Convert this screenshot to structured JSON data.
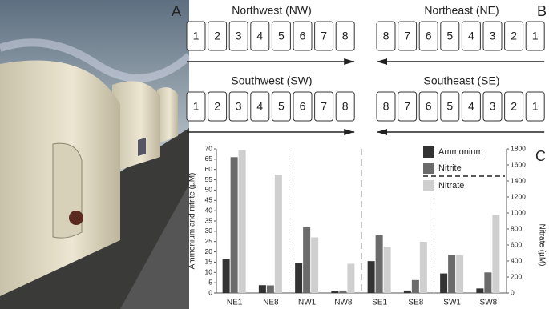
{
  "panel_labels": [
    "A",
    "B",
    "C"
  ],
  "diagram": {
    "groups": [
      {
        "title": "Northwest (NW)",
        "boxes": [
          1,
          2,
          3,
          4,
          5,
          6,
          7,
          8
        ],
        "direction": "right"
      },
      {
        "title": "Northeast (NE)",
        "boxes": [
          8,
          7,
          6,
          5,
          4,
          3,
          2,
          1
        ],
        "direction": "left"
      },
      {
        "title": "Southwest (SW)",
        "boxes": [
          1,
          2,
          3,
          4,
          5,
          6,
          7,
          8
        ],
        "direction": "right"
      },
      {
        "title": "Southeast (SE)",
        "boxes": [
          8,
          7,
          6,
          5,
          4,
          3,
          2,
          1
        ],
        "direction": "left"
      }
    ]
  },
  "chart_data": {
    "type": "bar",
    "y_label": "Ammonium and nitrite (µM)",
    "y2_label": "Nitrate (µM)",
    "categories": [
      "NE1",
      "NE8",
      "NW1",
      "NW8",
      "SE1",
      "SE8",
      "SW1",
      "SW8"
    ],
    "series": [
      {
        "name": "Ammonium",
        "color": "#333333",
        "values": [
          16.5,
          3.8,
          14.5,
          0.8,
          15.5,
          1.2,
          9.5,
          2.2
        ]
      },
      {
        "name": "Nitrite",
        "color": "#6b6b6b",
        "values": [
          66,
          3.7,
          32,
          1.2,
          28,
          6.3,
          18.5,
          10
        ]
      },
      {
        "name": "Nitrate",
        "color": "#cfcfcf",
        "axis": "y2",
        "values": [
          1785,
          1480,
          695,
          365,
          580,
          640,
          475,
          975
        ]
      }
    ],
    "ylim": [
      0,
      70
    ],
    "yticks": [
      0,
      5,
      10,
      15,
      20,
      25,
      30,
      35,
      40,
      45,
      50,
      55,
      60,
      65,
      70
    ],
    "y2lim": [
      0,
      1800
    ],
    "y2ticks": [
      0,
      200,
      400,
      600,
      800,
      1000,
      1200,
      1400,
      1600,
      1800
    ],
    "legend": "upper right"
  }
}
